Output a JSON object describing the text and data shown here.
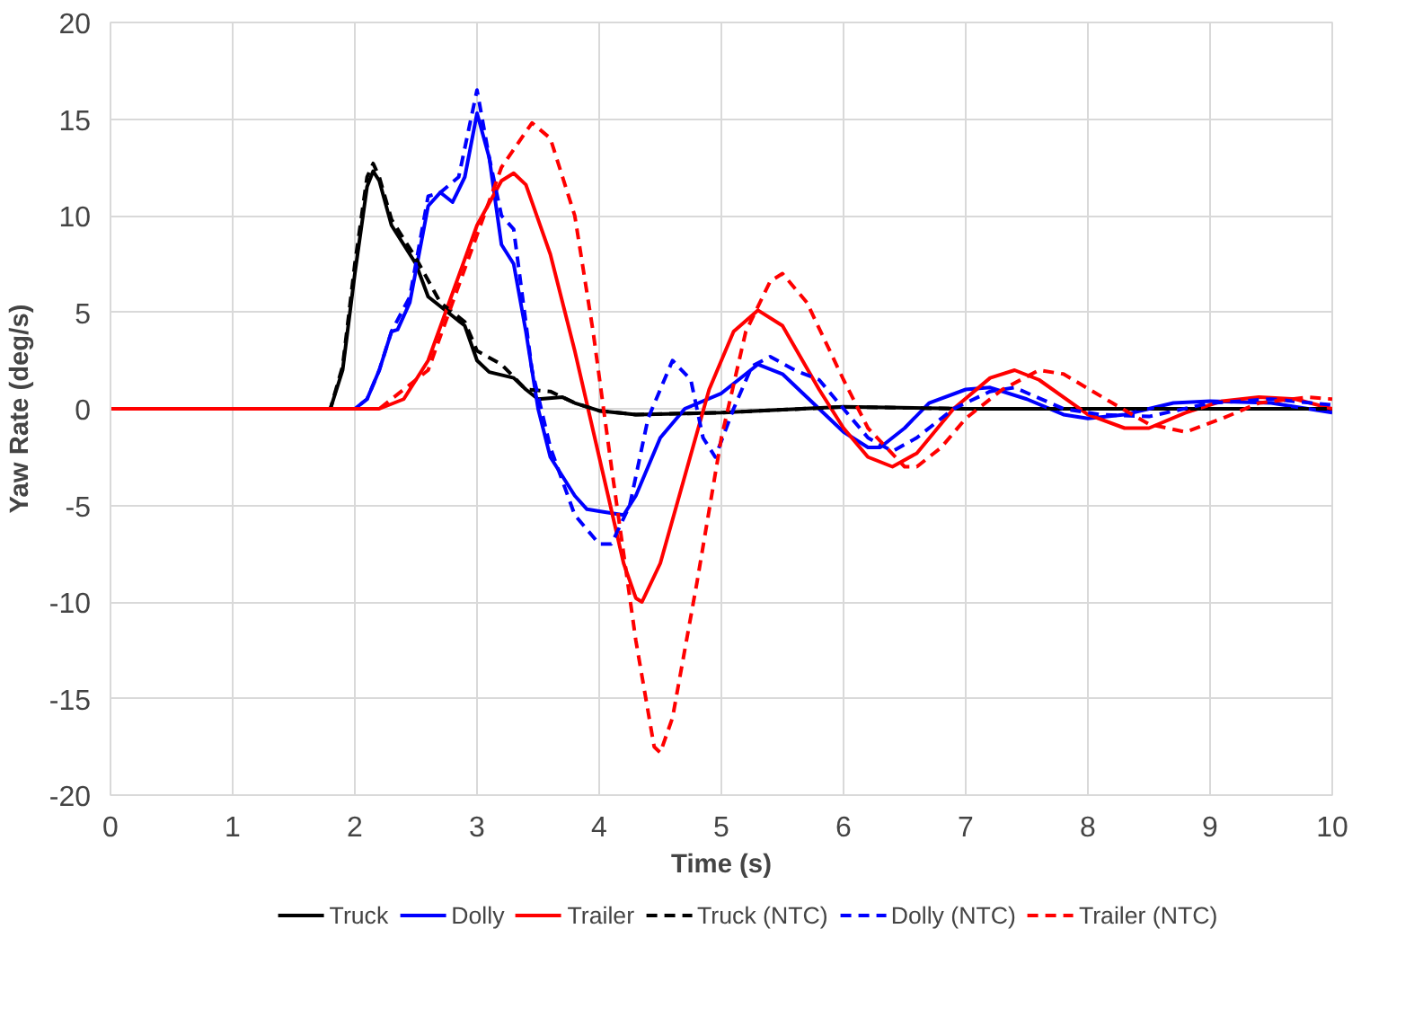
{
  "chart_data": {
    "type": "line",
    "xlabel": "Time (s)",
    "ylabel": "Yaw Rate (deg/s)",
    "xlim": [
      0,
      10
    ],
    "ylim": [
      -20,
      20
    ],
    "xticks": [
      0,
      1,
      2,
      3,
      4,
      5,
      6,
      7,
      8,
      9,
      10
    ],
    "yticks": [
      -20,
      -15,
      -10,
      -5,
      0,
      5,
      10,
      15,
      20
    ],
    "grid": true,
    "legend": "bottom",
    "marker": "none",
    "series": [
      {
        "name": "Truck",
        "color": "#000000",
        "line_style": "solid",
        "x": [
          0,
          1.8,
          1.9,
          2.0,
          2.1,
          2.15,
          2.2,
          2.3,
          2.5,
          2.6,
          2.8,
          2.9,
          3.0,
          3.1,
          3.3,
          3.4,
          3.5,
          3.7,
          3.8,
          4.0,
          4.3,
          5.0,
          6.0,
          7.0,
          10
        ],
        "values": [
          0,
          0,
          2,
          7,
          11.5,
          12.3,
          11.8,
          9.5,
          7.5,
          5.8,
          4.8,
          4.3,
          2.5,
          1.9,
          1.6,
          1.0,
          0.5,
          0.6,
          0.3,
          -0.1,
          -0.3,
          -0.2,
          0.1,
          0,
          0
        ]
      },
      {
        "name": "Dolly",
        "color": "#0000ff",
        "line_style": "solid",
        "x": [
          0,
          2.0,
          2.1,
          2.2,
          2.3,
          2.35,
          2.45,
          2.6,
          2.7,
          2.8,
          2.9,
          3.0,
          3.1,
          3.2,
          3.3,
          3.4,
          3.5,
          3.6,
          3.8,
          3.9,
          4.0,
          4.2,
          4.3,
          4.5,
          4.7,
          5.0,
          5.2,
          5.3,
          5.5,
          5.8,
          6.0,
          6.2,
          6.3,
          6.5,
          6.7,
          7.0,
          7.2,
          7.5,
          7.8,
          8.0,
          8.3,
          8.7,
          9.0,
          9.5,
          10
        ],
        "values": [
          0,
          0,
          0.5,
          2,
          4,
          4.1,
          5.5,
          10.5,
          11.2,
          10.7,
          12,
          15.3,
          13,
          8.5,
          7.5,
          4,
          0,
          -2.5,
          -4.5,
          -5.2,
          -5.3,
          -5.5,
          -4.5,
          -1.5,
          0,
          0.8,
          1.8,
          2.3,
          1.8,
          0,
          -1.2,
          -2.0,
          -2.0,
          -1.0,
          0.3,
          1.0,
          1.1,
          0.5,
          -0.3,
          -0.5,
          -0.3,
          0.3,
          0.4,
          0.3,
          -0.2
        ]
      },
      {
        "name": "Trailer",
        "color": "#ff0000",
        "line_style": "solid",
        "x": [
          0,
          2.2,
          2.4,
          2.6,
          2.8,
          3.0,
          3.2,
          3.3,
          3.4,
          3.6,
          3.8,
          4.0,
          4.2,
          4.3,
          4.35,
          4.5,
          4.7,
          4.9,
          5.1,
          5.3,
          5.5,
          5.8,
          6.0,
          6.2,
          6.4,
          6.6,
          6.9,
          7.2,
          7.4,
          7.6,
          8.0,
          8.3,
          8.5,
          8.8,
          9.1,
          9.4,
          9.7,
          10
        ],
        "values": [
          0,
          0,
          0.5,
          2.5,
          6,
          9.5,
          11.8,
          12.2,
          11.6,
          8,
          3,
          -2.5,
          -8,
          -9.8,
          -10,
          -8,
          -3.5,
          1.0,
          4,
          5.1,
          4.3,
          1,
          -1.0,
          -2.5,
          -3.0,
          -2.3,
          0,
          1.6,
          2.0,
          1.5,
          -0.3,
          -1.0,
          -1.0,
          -0.2,
          0.4,
          0.6,
          0.5,
          0
        ]
      },
      {
        "name": "Truck (NTC)",
        "color": "#000000",
        "line_style": "dashed",
        "x": [
          0,
          1.8,
          1.9,
          2.0,
          2.1,
          2.15,
          2.2,
          2.3,
          2.5,
          2.7,
          2.9,
          3.0,
          3.2,
          3.4,
          3.6,
          3.8,
          4.0,
          4.3,
          5.0,
          6.0,
          7.0,
          10
        ],
        "values": [
          0,
          0,
          2.2,
          7.5,
          12,
          12.7,
          12,
          9.8,
          7.8,
          5.5,
          4.5,
          3.0,
          2.3,
          1.0,
          0.9,
          0.3,
          -0.1,
          -0.3,
          -0.2,
          0.1,
          0,
          0
        ]
      },
      {
        "name": "Dolly (NTC)",
        "color": "#0000ff",
        "line_style": "dashed",
        "x": [
          0,
          2.0,
          2.1,
          2.2,
          2.3,
          2.45,
          2.6,
          2.7,
          2.85,
          3.0,
          3.1,
          3.2,
          3.3,
          3.45,
          3.6,
          3.8,
          4.0,
          4.1,
          4.25,
          4.4,
          4.6,
          4.75,
          4.85,
          4.95,
          5.1,
          5.25,
          5.4,
          5.6,
          5.8,
          6.0,
          6.2,
          6.4,
          6.6,
          6.9,
          7.2,
          7.4,
          7.8,
          8.1,
          8.5,
          9.0,
          9.5,
          10
        ],
        "values": [
          0,
          0,
          0.5,
          2,
          4,
          5.8,
          11,
          11.2,
          12,
          16.5,
          13,
          10,
          9.3,
          2,
          -2,
          -5.5,
          -7,
          -7,
          -5,
          -0.5,
          2.5,
          1.5,
          -1.5,
          -2.5,
          0,
          2.2,
          2.7,
          2.0,
          1.5,
          0,
          -1.5,
          -2.2,
          -1.5,
          0,
          0.9,
          1.1,
          0,
          -0.3,
          -0.4,
          0.3,
          0.5,
          0.2
        ]
      },
      {
        "name": "Trailer (NTC)",
        "color": "#ff0000",
        "line_style": "dashed",
        "x": [
          0,
          2.2,
          2.6,
          3.0,
          3.2,
          3.45,
          3.6,
          3.8,
          3.95,
          4.1,
          4.3,
          4.45,
          4.5,
          4.6,
          4.8,
          5.0,
          5.2,
          5.4,
          5.5,
          5.7,
          6.0,
          6.2,
          6.5,
          6.6,
          6.8,
          7.0,
          7.3,
          7.6,
          7.8,
          8.2,
          8.5,
          8.8,
          9.1,
          9.4,
          9.8,
          10
        ],
        "values": [
          0,
          0,
          2.0,
          9,
          12.5,
          14.8,
          14,
          10,
          4,
          -3,
          -12,
          -17.5,
          -17.8,
          -16,
          -9,
          -1.5,
          4,
          6.6,
          7,
          5.5,
          1.5,
          -1.0,
          -3.0,
          -3.0,
          -2.0,
          -0.5,
          1.0,
          2.0,
          1.8,
          0.3,
          -0.8,
          -1.2,
          -0.5,
          0.3,
          0.6,
          0.5
        ]
      }
    ]
  }
}
